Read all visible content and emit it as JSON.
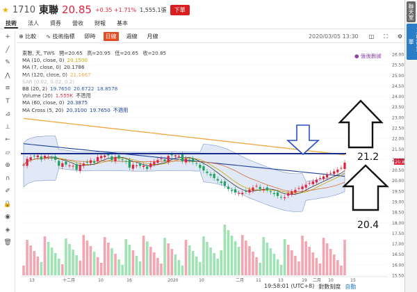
{
  "quote": {
    "code": "1710",
    "name": "東聯",
    "price": "20.85",
    "change": "+0.35 +1.71%",
    "volume": "1,555.1張",
    "sell_label": "下單"
  },
  "nav_tabs": [
    "技術",
    "法人",
    "資券",
    "營收",
    "財報",
    "基本"
  ],
  "toolbar": {
    "compare": "比較",
    "indicator": "技術指標",
    "realtime": "即時",
    "daily": "日線",
    "weekly": "週線",
    "monthly": "月線",
    "date": "2020/03/05 13:30"
  },
  "side_tabs": [
    "聯天室",
    "王山證券下單"
  ],
  "legend": {
    "title": "東聯, 天, TWS",
    "open": "開=20.65",
    "high": "高=20.95",
    "low": "低=20.65",
    "close": "收=20.85",
    "ma10": {
      "label": "MA (10, close, 0)",
      "value": "20.1500",
      "color": "#c9a800"
    },
    "ma7": {
      "label": "MA (7, close, 0)",
      "value": "20.1786",
      "color": "#222222"
    },
    "ma120": {
      "label": "MA (120, close, 0)",
      "value": "21.1667",
      "color": "#f2a53c"
    },
    "sar": {
      "label": "SAR (0.02, 0.02, 0.2)"
    },
    "bb": {
      "label": "BB (20, 2)",
      "v1": "19.7650",
      "v2": "20.6722",
      "v3": "18.8578",
      "color": "#2a5aa8"
    },
    "volume": {
      "label": "Volume (20)",
      "value": "1.555K",
      "note": "不適用"
    },
    "ma60": {
      "label": "MA (60, close, 0)",
      "value": "20.3875",
      "color": "#1a3e9a"
    },
    "macross": {
      "label": "MA Cross (5, 20)",
      "v1": "20.3100",
      "v2": "19.7650",
      "note": "不適用"
    }
  },
  "after_hours": "盤後數據",
  "annotations": {
    "upper": "21.2",
    "lower": "20.4"
  },
  "y_ticks": [
    "26.00",
    "25.50",
    "25.00",
    "24.50",
    "24.00",
    "23.50",
    "23.00",
    "22.50",
    "22.00",
    "21.50",
    "21.00",
    "20.50",
    "20.00",
    "19.50",
    "19.00",
    "18.50",
    "18.00",
    "17.50",
    "17.00",
    "16.50",
    "16.00",
    "15.50"
  ],
  "price_tag": "20.85",
  "x_ticks": [
    "13",
    "十二月",
    "10",
    "16",
    "2020",
    "10",
    "二月",
    "11",
    "13",
    "19",
    "二月",
    "10",
    "15"
  ],
  "footer": {
    "time": "19:58:01 (UTC+8)",
    "mode": "對數刻度",
    "auto": "自動"
  },
  "colors": {
    "up": "#e0223c",
    "down": "#1aa35a",
    "bband": "#c8d6ef",
    "resist": "#1a2a8a"
  }
}
